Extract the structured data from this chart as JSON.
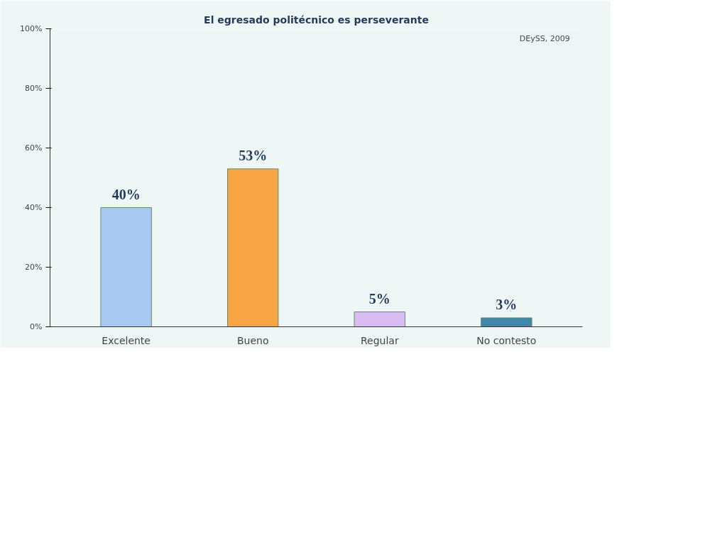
{
  "chart_data": {
    "type": "bar",
    "title": "El egresado politécnico es perseverante",
    "annotations": [
      "DEySS, 2009"
    ],
    "categories": [
      "Excelente",
      "Bueno",
      "Regular",
      "No contesto"
    ],
    "values": [
      40,
      53,
      5,
      3
    ],
    "colors": [
      "#a9c9f2",
      "#f7a445",
      "#d9bdf2",
      "#3f86a8"
    ],
    "value_labels": [
      "40%",
      "53%",
      "5%",
      "3%"
    ],
    "ylim": [
      0,
      100
    ],
    "yticks": [
      {
        "value": 0,
        "label": "0%"
      },
      {
        "value": 20,
        "label": "20%"
      },
      {
        "value": 40,
        "label": "40%"
      },
      {
        "value": 60,
        "label": "60%"
      },
      {
        "value": 80,
        "label": "80%"
      },
      {
        "value": 100,
        "label": "100%"
      }
    ],
    "grid": false
  }
}
